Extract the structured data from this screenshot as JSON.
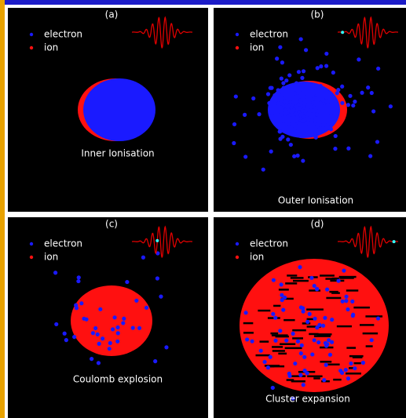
{
  "panels": [
    {
      "label": "(a)",
      "legend": [
        "electron",
        "ion"
      ],
      "caption": "Inner Ionisation"
    },
    {
      "label": "(b)",
      "legend": [
        "electron",
        "ion"
      ],
      "caption": "Outer Ionisation"
    },
    {
      "label": "(c)",
      "legend": [
        "electron",
        "ion"
      ],
      "caption": "Coulomb explosion"
    },
    {
      "label": "(d)",
      "legend": [
        "electron",
        "ion"
      ],
      "caption": "Cluster expansion"
    }
  ]
}
